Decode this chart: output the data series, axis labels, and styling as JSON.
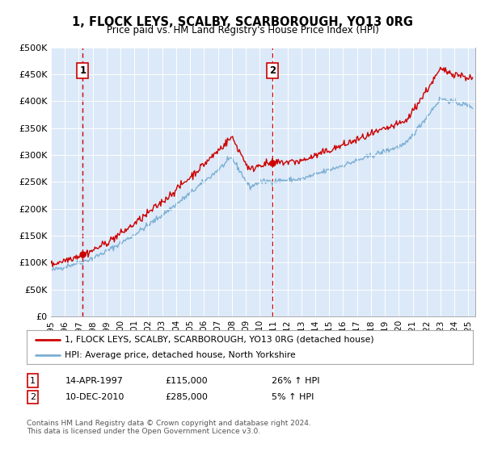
{
  "title": "1, FLOCK LEYS, SCALBY, SCARBOROUGH, YO13 0RG",
  "subtitle": "Price paid vs. HM Land Registry's House Price Index (HPI)",
  "legend_line1": "1, FLOCK LEYS, SCALBY, SCARBOROUGH, YO13 0RG (detached house)",
  "legend_line2": "HPI: Average price, detached house, North Yorkshire",
  "footnote": "Contains HM Land Registry data © Crown copyright and database right 2024.\nThis data is licensed under the Open Government Licence v3.0.",
  "transaction1_date": "14-APR-1997",
  "transaction1_price": 115000,
  "transaction1_label": "26% ↑ HPI",
  "transaction2_date": "10-DEC-2010",
  "transaction2_price": 285000,
  "transaction2_label": "5% ↑ HPI",
  "xmin": 1995.0,
  "xmax": 2025.5,
  "ymin": 0,
  "ymax": 500000,
  "yticks": [
    0,
    50000,
    100000,
    150000,
    200000,
    250000,
    300000,
    350000,
    400000,
    450000,
    500000
  ],
  "ytick_labels": [
    "£0",
    "£50K",
    "£100K",
    "£150K",
    "£200K",
    "£250K",
    "£300K",
    "£350K",
    "£400K",
    "£450K",
    "£500K"
  ],
  "plot_bg_color": "#dce9f8",
  "hpi_color": "#7bafd4",
  "property_color": "#cc0000",
  "vline_color": "#cc0000",
  "marker_color": "#cc0000",
  "transaction1_x": 1997.289,
  "transaction2_x": 2010.942
}
